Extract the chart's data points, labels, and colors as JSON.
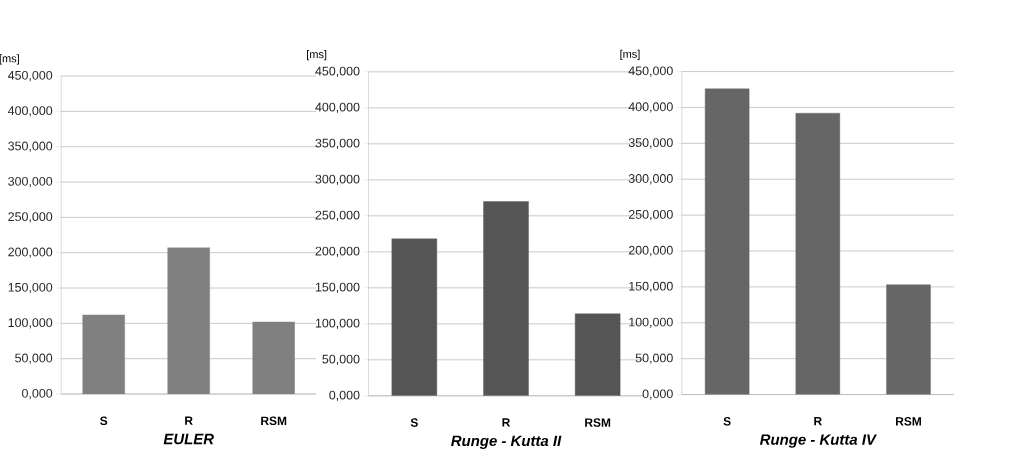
{
  "chart_data": [
    {
      "type": "bar",
      "xlabel": "EULER",
      "ylabel": "[ms]",
      "categories": [
        "S",
        "R",
        "RSM"
      ],
      "values": [
        112,
        207,
        102
      ],
      "color": "#808080",
      "ylim": [
        0,
        450
      ],
      "yticks": [
        {
          "value": 0,
          "label": "0,000"
        },
        {
          "value": 50,
          "label": "50,000"
        },
        {
          "value": 100,
          "label": "100,000"
        },
        {
          "value": 150,
          "label": "150,000"
        },
        {
          "value": 200,
          "label": "200,000"
        },
        {
          "value": 250,
          "label": "250,000"
        },
        {
          "value": 300,
          "label": "300,000"
        },
        {
          "value": 350,
          "label": "350,000"
        },
        {
          "value": 400,
          "label": "400,000"
        },
        {
          "value": 450,
          "label": "450,000"
        }
      ],
      "grid": "y"
    },
    {
      "type": "bar",
      "xlabel": "Runge - Kutta II",
      "ylabel": "[ms]",
      "categories": [
        "S",
        "R",
        "RSM"
      ],
      "values": [
        218,
        270,
        114
      ],
      "color": "#555555",
      "ylim": [
        0,
        450
      ],
      "yticks": [
        {
          "value": 0,
          "label": "0,000"
        },
        {
          "value": 50,
          "label": "50,000"
        },
        {
          "value": 100,
          "label": "100,000"
        },
        {
          "value": 150,
          "label": "150,000"
        },
        {
          "value": 200,
          "label": "200,000"
        },
        {
          "value": 250,
          "label": "250,000"
        },
        {
          "value": 300,
          "label": "300,000"
        },
        {
          "value": 350,
          "label": "350,000"
        },
        {
          "value": 400,
          "label": "400,000"
        },
        {
          "value": 450,
          "label": "450,000"
        }
      ],
      "grid": "y"
    },
    {
      "type": "bar",
      "xlabel": "Runge - Kutta IV",
      "ylabel": "[ms]",
      "categories": [
        "S",
        "R",
        "RSM"
      ],
      "values": [
        426,
        392,
        153
      ],
      "color": "#666666",
      "ylim": [
        0,
        450
      ],
      "yticks": [
        {
          "value": 0,
          "label": "0,000"
        },
        {
          "value": 50,
          "label": "50,000"
        },
        {
          "value": 100,
          "label": "100,000"
        },
        {
          "value": 150,
          "label": "150,000"
        },
        {
          "value": 200,
          "label": "200,000"
        },
        {
          "value": 250,
          "label": "250,000"
        },
        {
          "value": 300,
          "label": "300,000"
        },
        {
          "value": 350,
          "label": "350,000"
        },
        {
          "value": 400,
          "label": "400,000"
        },
        {
          "value": 450,
          "label": "450,000"
        }
      ],
      "grid": "y"
    }
  ]
}
